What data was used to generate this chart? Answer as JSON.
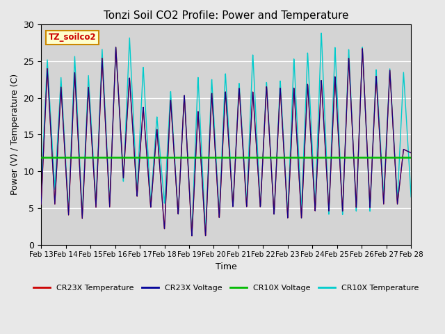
{
  "title": "Tonzi Soil CO2 Profile: Power and Temperature",
  "xlabel": "Time",
  "ylabel": "Power (V) / Temperature (C)",
  "ylim": [
    0,
    30
  ],
  "xtick_labels": [
    "Feb 13",
    "Feb 14",
    "Feb 15",
    "Feb 16",
    "Feb 17",
    "Feb 18",
    "Feb 19",
    "Feb 20",
    "Feb 21",
    "Feb 22",
    "Feb 23",
    "Feb 24",
    "Feb 25",
    "Feb 26",
    "Feb 27",
    "Feb 28"
  ],
  "cr10x_voltage_value": 11.85,
  "cr23x_voltage_value": 11.95,
  "annotation_text": "TZ_soilco2",
  "annotation_bg": "#ffffcc",
  "annotation_border": "#cc8800",
  "fig_bg_color": "#e8e8e8",
  "plot_bg_color": "#d4d4d4",
  "colors": {
    "CR23X_Temperature": "#cc0000",
    "CR23X_Voltage": "#000099",
    "CR10X_Voltage": "#00bb00",
    "CR10X_Temperature": "#00cccc"
  },
  "peak_heights_cyan": [
    25.2,
    22.8,
    25.7,
    23.1,
    26.7,
    27.0,
    28.3,
    24.3,
    17.5,
    21.0,
    20.5,
    23.0,
    22.7,
    23.5,
    22.2,
    26.1,
    22.3,
    22.5,
    25.5,
    26.3,
    29.0,
    27.0,
    26.7,
    27.0,
    23.9,
    24.0,
    23.5,
    13.7
  ],
  "peak_heights_red": [
    24.0,
    21.5,
    23.5,
    21.5,
    25.5,
    27.0,
    22.8,
    18.8,
    15.8,
    19.8,
    20.5,
    18.3,
    20.8,
    21.0,
    21.5,
    21.0,
    21.7,
    21.5,
    21.5,
    22.0,
    22.5,
    23.0,
    25.5,
    26.8,
    23.0,
    23.8,
    13.0,
    13.0
  ],
  "trough_heights_red": [
    5.5,
    4.0,
    3.5,
    5.0,
    5.0,
    9.0,
    6.5,
    5.0,
    2.0,
    4.0,
    1.0,
    1.0,
    3.5,
    5.0,
    5.0,
    5.0,
    4.0,
    3.5,
    3.5,
    4.5,
    4.5,
    4.5,
    5.0,
    5.0,
    5.5,
    5.5,
    12.5,
    12.5
  ],
  "trough_heights_cyan": [
    7.5,
    4.5,
    4.0,
    5.5,
    5.5,
    8.5,
    7.0,
    5.5,
    5.5,
    4.0,
    1.5,
    1.5,
    4.0,
    5.0,
    5.5,
    5.0,
    4.0,
    4.0,
    4.5,
    5.0,
    4.0,
    4.0,
    4.5,
    4.5,
    6.5,
    6.0,
    6.5,
    13.5
  ]
}
